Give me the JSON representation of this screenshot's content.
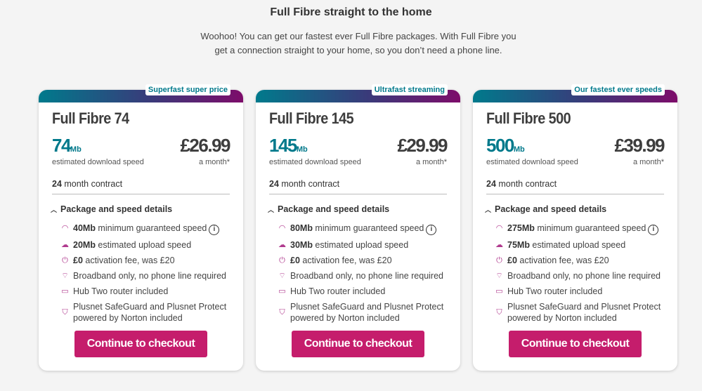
{
  "header": {
    "title": "Full Fibre straight to the home",
    "intro": "Woohoo! You can get our fastest ever Full Fibre packages. With Full Fibre you get a connection straight to your home, so you don’t need a phone line."
  },
  "colors": {
    "accent": "#00798b",
    "button": "#c51d6c",
    "gradient_end": "#7d0c6a"
  },
  "cards": [
    {
      "badge": "Superfast super price",
      "name": "Full Fibre 74",
      "speed": "74",
      "unit": "Mb",
      "speed_label": "estimated download speed",
      "price": "£26.99",
      "price_label": "a month*",
      "contract_num": "24",
      "contract_text": " month contract",
      "details_label": "Package and speed details",
      "min_speed": "40Mb",
      "min_text": " minimum guaranteed speed",
      "upload": "20Mb",
      "upload_text": " estimated upload speed",
      "fee": "£0",
      "fee_text": " activation fee, was £20",
      "broadband": "Broadband only, no phone line required",
      "router": "Hub Two router included",
      "safeguard": "Plusnet SafeGuard and Plusnet Protect powered by Norton included",
      "cta": "Continue to checkout"
    },
    {
      "badge": "Ultrafast streaming",
      "name": "Full Fibre 145",
      "speed": "145",
      "unit": "Mb",
      "speed_label": "estimated download speed",
      "price": "£29.99",
      "price_label": "a month*",
      "contract_num": "24",
      "contract_text": " month contract",
      "details_label": "Package and speed details",
      "min_speed": "80Mb",
      "min_text": " minimum guaranteed speed",
      "upload": "30Mb",
      "upload_text": " estimated upload speed",
      "fee": "£0",
      "fee_text": " activation fee, was £20",
      "broadband": "Broadband only, no phone line required",
      "router": "Hub Two router included",
      "safeguard": "Plusnet SafeGuard and Plusnet Protect powered by Norton included",
      "cta": "Continue to checkout"
    },
    {
      "badge": "Our fastest ever speeds",
      "name": "Full Fibre 500",
      "speed": "500",
      "unit": "Mb",
      "speed_label": "estimated download speed",
      "price": "£39.99",
      "price_label": "a month*",
      "contract_num": "24",
      "contract_text": " month contract",
      "details_label": "Package and speed details",
      "min_speed": "275Mb",
      "min_text": " minimum guaranteed speed",
      "upload": "75Mb",
      "upload_text": " estimated upload speed",
      "fee": "£0",
      "fee_text": " activation fee, was £20",
      "broadband": "Broadband only, no phone line required",
      "router": "Hub Two router included",
      "safeguard": "Plusnet SafeGuard and Plusnet Protect powered by Norton included",
      "cta": "Continue to checkout"
    }
  ]
}
